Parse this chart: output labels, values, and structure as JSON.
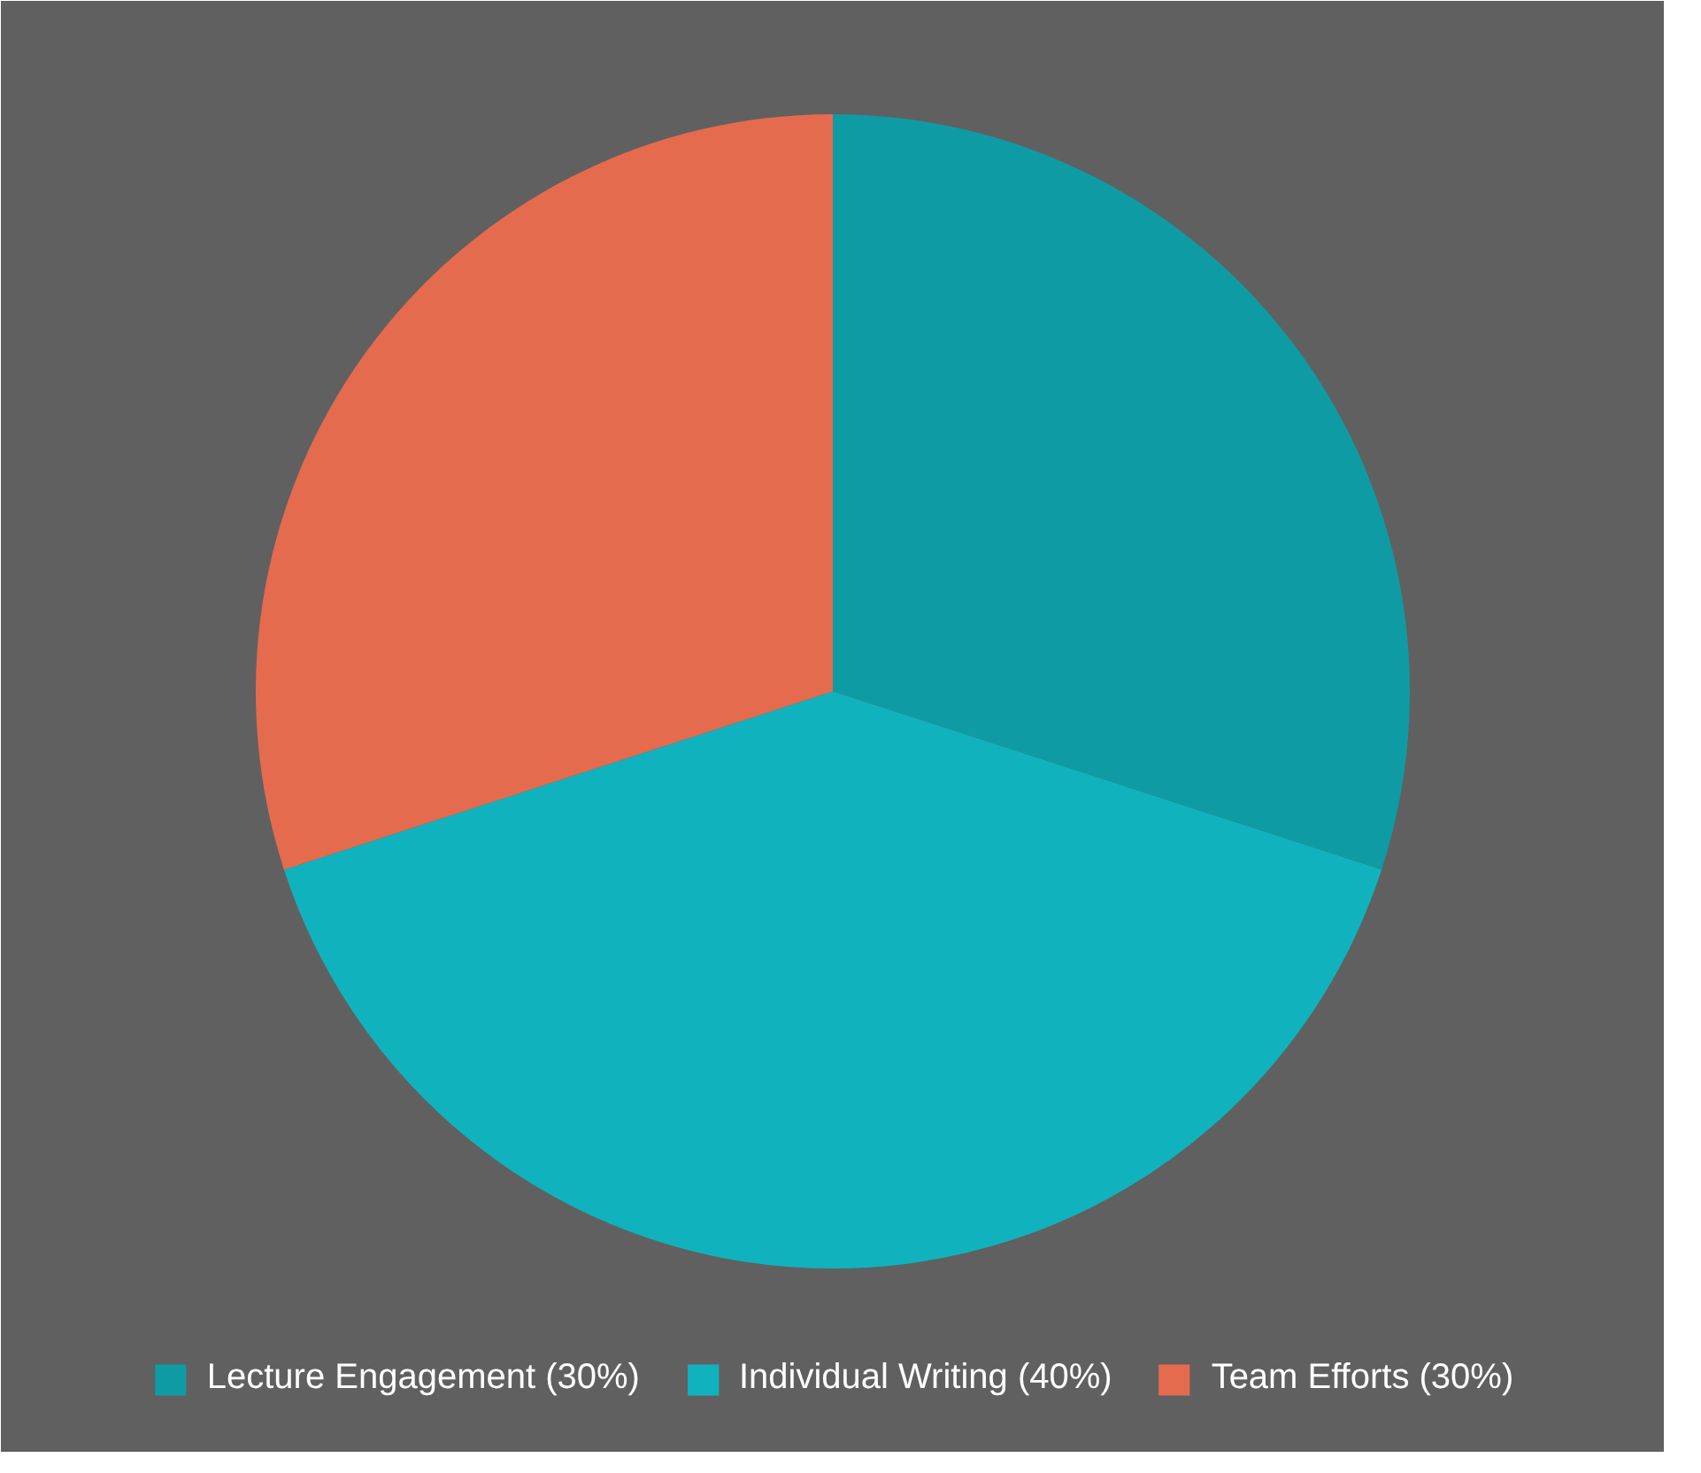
{
  "chart_data": {
    "type": "pie",
    "categories": [
      "Lecture Engagement (30%)",
      "Individual Writing (40%)",
      "Team Efforts (30%)"
    ],
    "values": [
      30,
      40,
      30
    ],
    "colors": [
      "#0f9ba3",
      "#10b3bd",
      "#e56b4e"
    ],
    "legend": "bottom"
  }
}
